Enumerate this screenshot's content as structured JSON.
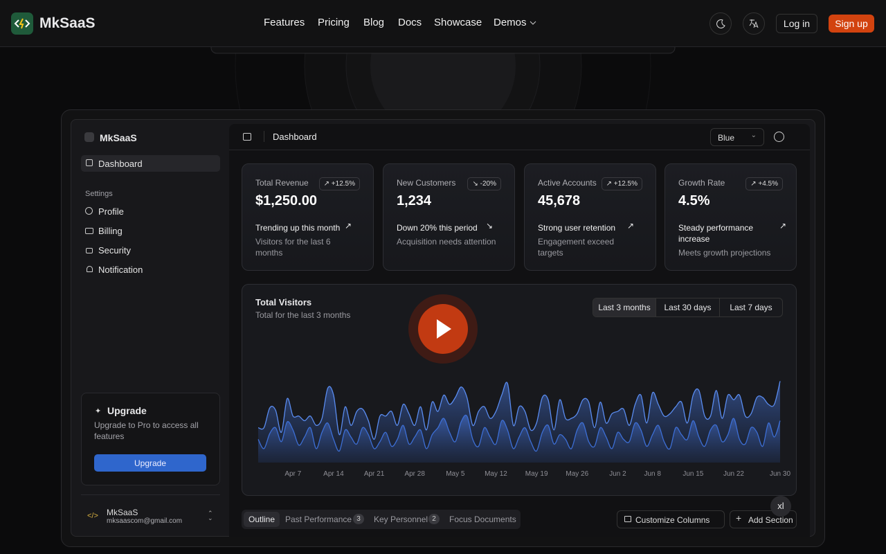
{
  "nav": {
    "brand": "MkSaaS",
    "links": [
      "Features",
      "Pricing",
      "Blog",
      "Docs",
      "Showcase",
      "Demos"
    ],
    "login": "Log in",
    "signup": "Sign up"
  },
  "sidebar": {
    "brand": "MkSaaS",
    "main_item": "Dashboard",
    "section": "Settings",
    "items": [
      "Profile",
      "Billing",
      "Security",
      "Notification"
    ],
    "upgrade": {
      "title": "Upgrade",
      "text": "Upgrade to Pro to access all features",
      "button": "Upgrade"
    },
    "user": {
      "name": "MkSaaS",
      "email": "mksaascom@gmail.com"
    }
  },
  "header": {
    "title": "Dashboard",
    "theme": "Blue"
  },
  "cards": [
    {
      "label": "Total Revenue",
      "badge": "+12.5%",
      "value": "$1,250.00",
      "trend": "Trending up this month",
      "note": "Visitors for the last 6 months"
    },
    {
      "label": "New Customers",
      "badge": "-20%",
      "value": "1,234",
      "trend": "Down 20% this period",
      "note": "Acquisition needs attention"
    },
    {
      "label": "Active Accounts",
      "badge": "+12.5%",
      "value": "45,678",
      "trend": "Strong user retention",
      "note": "Engagement exceed targets"
    },
    {
      "label": "Growth Rate",
      "badge": "+4.5%",
      "value": "4.5%",
      "trend": "Steady performance increase",
      "note": "Meets growth projections"
    }
  ],
  "chart_data": {
    "type": "area",
    "stacked": true,
    "title": "Total Visitors",
    "subtitle": "Total for the last 3 months",
    "ranges": [
      "Last 3 months",
      "Last 30 days",
      "Last 7 days"
    ],
    "categories": [
      null,
      null,
      null,
      null,
      null,
      null,
      "Apr 7",
      null,
      null,
      null,
      null,
      null,
      null,
      "Apr 14",
      null,
      null,
      null,
      null,
      null,
      null,
      "Apr 21",
      null,
      null,
      null,
      null,
      null,
      null,
      "Apr 28",
      null,
      null,
      null,
      null,
      null,
      null,
      "May 5",
      null,
      null,
      null,
      null,
      null,
      null,
      "May 12",
      null,
      null,
      null,
      null,
      null,
      null,
      "May 19",
      null,
      null,
      null,
      null,
      null,
      null,
      "May 26",
      null,
      null,
      null,
      null,
      null,
      null,
      "Jun 2",
      null,
      null,
      null,
      null,
      null,
      "Jun 8",
      null,
      null,
      null,
      null,
      null,
      null,
      "Jun 15",
      null,
      null,
      null,
      null,
      null,
      null,
      "Jun 22",
      null,
      null,
      null,
      null,
      null,
      null,
      null,
      "Jun 30"
    ],
    "ylim": [
      0,
      100
    ],
    "series": [
      {
        "color": "#3d6fd6",
        "values": [
          20,
          12,
          25,
          30,
          18,
          35,
          28,
          15,
          22,
          30,
          12,
          26,
          34,
          20,
          10,
          28,
          22,
          16,
          30,
          24,
          12,
          18,
          26,
          14,
          20,
          32,
          16,
          22,
          28,
          12,
          24,
          30,
          38,
          26,
          18,
          35,
          40,
          20,
          14,
          30,
          22,
          16,
          36,
          28,
          12,
          22,
          30,
          18,
          10,
          26,
          32,
          16,
          24,
          20,
          12,
          28,
          34,
          18,
          14,
          30,
          22,
          12,
          26,
          20,
          18,
          34,
          28,
          14,
          24,
          32,
          18,
          12,
          30,
          24,
          20,
          36,
          22,
          14,
          28,
          32,
          18,
          24,
          38,
          20,
          16,
          30,
          26,
          14,
          34,
          22,
          36
        ]
      },
      {
        "color": "#5a8cf0",
        "values": [
          10,
          18,
          22,
          15,
          8,
          20,
          12,
          25,
          14,
          10,
          20,
          12,
          30,
          38,
          14,
          20,
          10,
          28,
          16,
          12,
          8,
          22,
          14,
          30,
          12,
          18,
          26,
          10,
          20,
          16,
          28,
          14,
          20,
          24,
          38,
          30,
          16,
          12,
          30,
          18,
          16,
          28,
          22,
          40,
          20,
          26,
          14,
          10,
          24,
          30,
          22,
          12,
          30,
          18,
          26,
          14,
          20,
          34,
          16,
          22,
          12,
          30,
          18,
          26,
          14,
          16,
          30,
          20,
          36,
          18,
          22,
          30,
          18,
          28,
          14,
          22,
          40,
          26,
          12,
          30,
          20,
          34,
          16,
          38,
          24,
          12,
          30,
          42,
          16,
          28,
          34
        ]
      }
    ]
  },
  "tabs": {
    "items": [
      {
        "label": "Outline"
      },
      {
        "label": "Past Performance",
        "count": 3
      },
      {
        "label": "Key Personnel",
        "count": 2
      },
      {
        "label": "Focus Documents"
      }
    ],
    "customize": "Customize Columns",
    "add": "Add Section"
  },
  "overlay": {
    "badge": "xl"
  }
}
